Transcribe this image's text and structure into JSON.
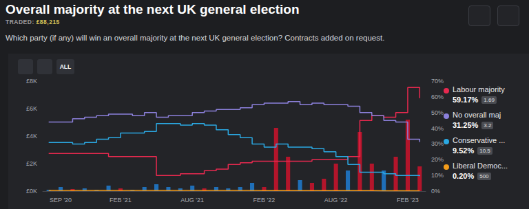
{
  "header": {
    "title": "Overall majority at the next UK general election",
    "traded_label": "TRADED:",
    "traded_value": "£88,215",
    "subtitle": "Which party (if any) will win an overall majority at the next UK general election? Contracts added on request."
  },
  "toolbar": {
    "button": "ALL"
  },
  "chart_data": {
    "type": "line",
    "categories": [
      null,
      "SEP '20",
      null,
      null,
      null,
      null,
      "FEB '21",
      null,
      null,
      null,
      null,
      null,
      "AUG '21",
      null,
      null,
      null,
      null,
      null,
      "FEB '22",
      null,
      null,
      null,
      null,
      null,
      "AUG '22",
      null,
      null,
      null,
      null,
      null,
      "FEB '23",
      null
    ],
    "ylim": [
      0,
      8000
    ],
    "yticks": [
      {
        "value": 0,
        "label": "£0K"
      },
      {
        "value": 2000,
        "label": "£2K"
      },
      {
        "value": 4000,
        "label": "£4K"
      },
      {
        "value": 6000,
        "label": "£6K"
      },
      {
        "value": 8000,
        "label": "£8K"
      }
    ],
    "y2lim": [
      0,
      70
    ],
    "y2ticks": [
      {
        "value": 0,
        "label": "0%"
      },
      {
        "value": 10,
        "label": "10%"
      },
      {
        "value": 20,
        "label": "20%"
      },
      {
        "value": 30,
        "label": "30%"
      },
      {
        "value": 40,
        "label": "40%"
      },
      {
        "value": 50,
        "label": "50%"
      },
      {
        "value": 60,
        "label": "60%"
      },
      {
        "value": 70,
        "label": "70%"
      }
    ],
    "grid": false,
    "legend": "right",
    "series": [
      {
        "type": "bar",
        "axis": "y",
        "values": [
          100,
          300,
          150,
          200,
          100,
          400,
          200,
          100,
          300,
          500,
          300,
          200,
          400,
          200,
          300,
          200,
          300,
          600,
          300,
          4600,
          2500,
          800,
          600,
          900,
          2000,
          1500,
          4300,
          2000,
          1500,
          2500,
          5200,
          1800
        ],
        "colors": [
          "#1f6fb8",
          "#1f6fb8",
          "#b3152b",
          "#1f6fb8",
          "#1f6fb8",
          "#1f6fb8",
          "#b3152b",
          "#1f6fb8",
          "#1f6fb8",
          "#1f6fb8",
          "#1f6fb8",
          "#1f6fb8",
          "#1f6fb8",
          "#b3152b",
          "#1f6fb8",
          "#1f6fb8",
          "#1f6fb8",
          "#1f6fb8",
          "#b3152b",
          "#b3152b",
          "#b3152b",
          "#1f6fb8",
          "#b3152b",
          "#b3152b",
          "#b3152b",
          "#1f6fb8",
          "#b3152b",
          "#b3152b",
          "#1f6fb8",
          "#b3152b",
          "#b3152b",
          "#b3152b"
        ]
      },
      {
        "name": "Labour majority",
        "color": "#e8294f",
        "axis": "y2",
        "line_style": "step",
        "last_value": {
          "value": 59.17,
          "label": "59.17%"
        },
        "odds": 1.69,
        "values": [
          24,
          24,
          24,
          24,
          24,
          22,
          22,
          22,
          22,
          10,
          10,
          11,
          11,
          13,
          14,
          17,
          18,
          19,
          19,
          19,
          19,
          19,
          20,
          20,
          20,
          22,
          45,
          48,
          47,
          50,
          66,
          59.17
        ]
      },
      {
        "name": "No overall maj",
        "color": "#8c80db",
        "axis": "y2",
        "line_style": "step",
        "last_value": {
          "value": 31.25,
          "label": "31.25%"
        },
        "odds": 3.2,
        "values": [
          44,
          44,
          46,
          47,
          48,
          49,
          49,
          48,
          50,
          47,
          48,
          48,
          50,
          51,
          52,
          52,
          53,
          55,
          56,
          56,
          57,
          55,
          56,
          55,
          55,
          54,
          50,
          48,
          45,
          44,
          33,
          31.25
        ]
      },
      {
        "name": "Conservative ...",
        "color": "#2ba8e2",
        "axis": "y2",
        "line_style": "step",
        "last_value": {
          "value": 9.52,
          "label": "9.52%"
        },
        "odds": 10.5,
        "values": [
          31,
          31,
          30,
          31,
          33,
          34,
          37,
          37,
          38,
          43,
          43,
          42,
          43,
          42,
          39,
          36,
          34,
          30,
          28,
          30,
          28,
          28,
          27,
          25,
          22,
          17,
          12,
          12,
          11,
          10,
          10,
          9.52
        ]
      },
      {
        "name": "Liberal Democ...",
        "color": "#f39c1a",
        "axis": "y2",
        "line_style": "step",
        "last_value": {
          "value": 0.2,
          "label": "0.20%"
        },
        "odds": 500,
        "values": [
          0.4,
          0.4,
          0.4,
          0.4,
          0.4,
          0.4,
          0.4,
          0.4,
          0.4,
          0.4,
          0.4,
          0.4,
          0.4,
          0.4,
          0.4,
          0.4,
          0.4,
          0.3,
          0.3,
          0.3,
          0.3,
          0.3,
          0.3,
          0.3,
          0.3,
          0.3,
          0.3,
          0.2,
          0.2,
          0.2,
          0.2,
          0.2
        ]
      }
    ]
  }
}
